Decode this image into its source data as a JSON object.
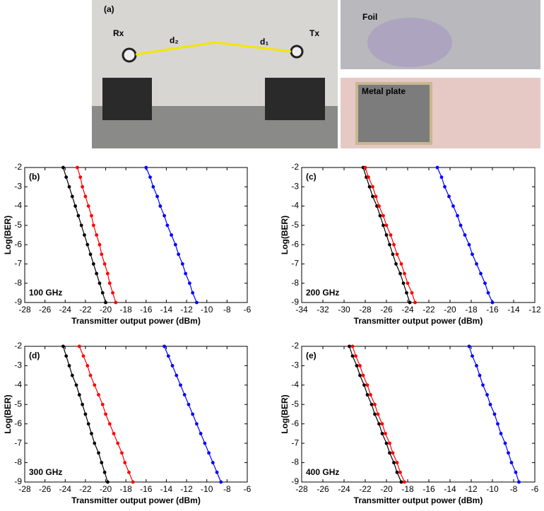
{
  "photo_panel": {
    "label": "(a)",
    "rx": "Rx",
    "tx": "Tx",
    "d2": "d₂",
    "d1": "d₁",
    "foil": "Foil",
    "metal": "Metal plate"
  },
  "chart_data": [
    {
      "type": "line",
      "panel_label": "(b)",
      "annotation": "100 GHz",
      "xlabel": "Transmitter output power (dBm)",
      "ylabel": "Log(BER)",
      "xlim": [
        -28,
        -6
      ],
      "xticks": [
        -28,
        -26,
        -24,
        -22,
        -20,
        -18,
        -16,
        -14,
        -12,
        -10,
        -8,
        -6
      ],
      "ylim": [
        -9,
        -2
      ],
      "yticks": [
        -9,
        -8,
        -7,
        -6,
        -5,
        -4,
        -3,
        -2
      ],
      "series": [
        {
          "color": "#000000",
          "x": [
            -24.2,
            -23.9,
            -23.6,
            -23.3,
            -23.0,
            -22.7,
            -22.4,
            -22.1,
            -21.8,
            -21.5,
            -21.2,
            -20.9,
            -20.6,
            -20.3,
            -20.0
          ],
          "values": [
            -2,
            -2.5,
            -3,
            -3.5,
            -4,
            -4.5,
            -5,
            -5.5,
            -6,
            -6.5,
            -7,
            -7.5,
            -8,
            -8.5,
            -9
          ]
        },
        {
          "color": "#ff0000",
          "x": [
            -22.8,
            -22.5,
            -22.3,
            -22.0,
            -21.7,
            -21.4,
            -21.2,
            -20.9,
            -20.6,
            -20.4,
            -20.1,
            -19.8,
            -19.6,
            -19.3,
            -19.0
          ],
          "values": [
            -2,
            -2.5,
            -3,
            -3.5,
            -4,
            -4.5,
            -5,
            -5.5,
            -6,
            -6.5,
            -7,
            -7.5,
            -8,
            -8.5,
            -9
          ]
        },
        {
          "color": "#0000ff",
          "x": [
            -16.0,
            -15.6,
            -15.3,
            -14.9,
            -14.6,
            -14.2,
            -13.9,
            -13.5,
            -13.1,
            -12.8,
            -12.4,
            -12.1,
            -11.7,
            -11.4,
            -11.0
          ],
          "values": [
            -2,
            -2.5,
            -3,
            -3.5,
            -4,
            -4.5,
            -5,
            -5.5,
            -6,
            -6.5,
            -7,
            -7.5,
            -8,
            -8.5,
            -9
          ]
        }
      ]
    },
    {
      "type": "line",
      "panel_label": "(c)",
      "annotation": "200 GHz",
      "xlabel": "Transmitter output power (dBm)",
      "ylabel": "Log(BER)",
      "xlim": [
        -34,
        -12
      ],
      "xticks": [
        -34,
        -32,
        -30,
        -28,
        -26,
        -24,
        -22,
        -20,
        -18,
        -16,
        -14,
        -12
      ],
      "ylim": [
        -9,
        -2
      ],
      "yticks": [
        -9,
        -8,
        -7,
        -6,
        -5,
        -4,
        -3,
        -2
      ],
      "series": [
        {
          "color": "#000000",
          "x": [
            -28.2,
            -27.9,
            -27.6,
            -27.3,
            -26.9,
            -26.6,
            -26.3,
            -26.0,
            -25.7,
            -25.4,
            -25.1,
            -24.7,
            -24.4,
            -24.1,
            -23.8
          ],
          "values": [
            -2,
            -2.5,
            -3,
            -3.5,
            -4,
            -4.5,
            -5,
            -5.5,
            -6,
            -6.5,
            -7,
            -7.5,
            -8,
            -8.5,
            -9
          ]
        },
        {
          "color": "#ff0000",
          "x": [
            -28.0,
            -27.7,
            -27.3,
            -27.0,
            -26.7,
            -26.3,
            -26.0,
            -25.6,
            -25.3,
            -25.0,
            -24.6,
            -24.3,
            -24.0,
            -23.6,
            -23.3
          ],
          "values": [
            -2,
            -2.5,
            -3,
            -3.5,
            -4,
            -4.5,
            -5,
            -5.5,
            -6,
            -6.5,
            -7,
            -7.5,
            -8,
            -8.5,
            -9
          ]
        },
        {
          "color": "#0000ff",
          "x": [
            -21.2,
            -20.8,
            -20.5,
            -20.1,
            -19.7,
            -19.3,
            -19.0,
            -18.6,
            -18.2,
            -17.9,
            -17.5,
            -17.1,
            -16.7,
            -16.4,
            -16.0
          ],
          "values": [
            -2,
            -2.5,
            -3,
            -3.5,
            -4,
            -4.5,
            -5,
            -5.5,
            -6,
            -6.5,
            -7,
            -7.5,
            -8,
            -8.5,
            -9
          ]
        }
      ]
    },
    {
      "type": "line",
      "panel_label": "(d)",
      "annotation": "300 GHz",
      "xlabel": "Transmitter output power (dBm)",
      "ylabel": "Log(BER)",
      "xlim": [
        -28,
        -6
      ],
      "xticks": [
        -28,
        -26,
        -24,
        -22,
        -20,
        -18,
        -16,
        -14,
        -12,
        -10,
        -8,
        -6
      ],
      "ylim": [
        -9,
        -2
      ],
      "yticks": [
        -9,
        -8,
        -7,
        -6,
        -5,
        -4,
        -3,
        -2
      ],
      "series": [
        {
          "color": "#000000",
          "x": [
            -24.2,
            -23.9,
            -23.6,
            -23.3,
            -22.9,
            -22.6,
            -22.3,
            -22.0,
            -21.7,
            -21.4,
            -21.1,
            -20.7,
            -20.4,
            -20.1,
            -19.8
          ],
          "values": [
            -2,
            -2.5,
            -3,
            -3.5,
            -4,
            -4.5,
            -5,
            -5.5,
            -6,
            -6.5,
            -7,
            -7.5,
            -8,
            -8.5,
            -9
          ]
        },
        {
          "color": "#ff0000",
          "x": [
            -22.6,
            -22.2,
            -21.8,
            -21.5,
            -21.1,
            -20.7,
            -20.3,
            -20.0,
            -19.6,
            -19.2,
            -18.8,
            -18.4,
            -18.1,
            -17.7,
            -17.3
          ],
          "values": [
            -2,
            -2.5,
            -3,
            -3.5,
            -4,
            -4.5,
            -5,
            -5.5,
            -6,
            -6.5,
            -7,
            -7.5,
            -8,
            -8.5,
            -9
          ]
        },
        {
          "color": "#0000ff",
          "x": [
            -14.2,
            -13.8,
            -13.4,
            -13.0,
            -12.6,
            -12.2,
            -11.8,
            -11.4,
            -11.0,
            -10.6,
            -10.2,
            -9.8,
            -9.4,
            -9.0,
            -8.6
          ],
          "values": [
            -2,
            -2.5,
            -3,
            -3.5,
            -4,
            -4.5,
            -5,
            -5.5,
            -6,
            -6.5,
            -7,
            -7.5,
            -8,
            -8.5,
            -9
          ]
        }
      ]
    },
    {
      "type": "line",
      "panel_label": "(e)",
      "annotation": "400 GHz",
      "xlabel": "Transmitter output power (dBm)",
      "ylabel": "Log(BER)",
      "xlim": [
        -28,
        -6
      ],
      "xticks": [
        -28,
        -26,
        -24,
        -22,
        -20,
        -18,
        -16,
        -14,
        -12,
        -10,
        -8,
        -6
      ],
      "ylim": [
        -9,
        -2
      ],
      "yticks": [
        -9,
        -8,
        -7,
        -6,
        -5,
        -4,
        -3,
        -2
      ],
      "series": [
        {
          "color": "#000000",
          "x": [
            -23.5,
            -23.2,
            -22.8,
            -22.5,
            -22.1,
            -21.8,
            -21.4,
            -21.1,
            -20.7,
            -20.4,
            -20.0,
            -19.7,
            -19.3,
            -19.0,
            -18.6
          ],
          "values": [
            -2,
            -2.5,
            -3,
            -3.5,
            -4,
            -4.5,
            -5,
            -5.5,
            -6,
            -6.5,
            -7,
            -7.5,
            -8,
            -8.5,
            -9
          ]
        },
        {
          "color": "#ff0000",
          "x": [
            -23.2,
            -22.9,
            -22.5,
            -22.2,
            -21.8,
            -21.5,
            -21.1,
            -20.8,
            -20.4,
            -20.1,
            -19.7,
            -19.4,
            -19.0,
            -18.7,
            -18.3
          ],
          "values": [
            -2,
            -2.5,
            -3,
            -3.5,
            -4,
            -4.5,
            -5,
            -5.5,
            -6,
            -6.5,
            -7,
            -7.5,
            -8,
            -8.5,
            -9
          ]
        },
        {
          "color": "#0000ff",
          "x": [
            -12.2,
            -11.9,
            -11.5,
            -11.2,
            -10.9,
            -10.5,
            -10.2,
            -9.8,
            -9.5,
            -9.2,
            -8.8,
            -8.5,
            -8.2,
            -7.8,
            -7.5
          ],
          "values": [
            -2,
            -2.5,
            -3,
            -3.5,
            -4,
            -4.5,
            -5,
            -5.5,
            -6,
            -6.5,
            -7,
            -7.5,
            -8,
            -8.5,
            -9
          ]
        }
      ]
    }
  ]
}
